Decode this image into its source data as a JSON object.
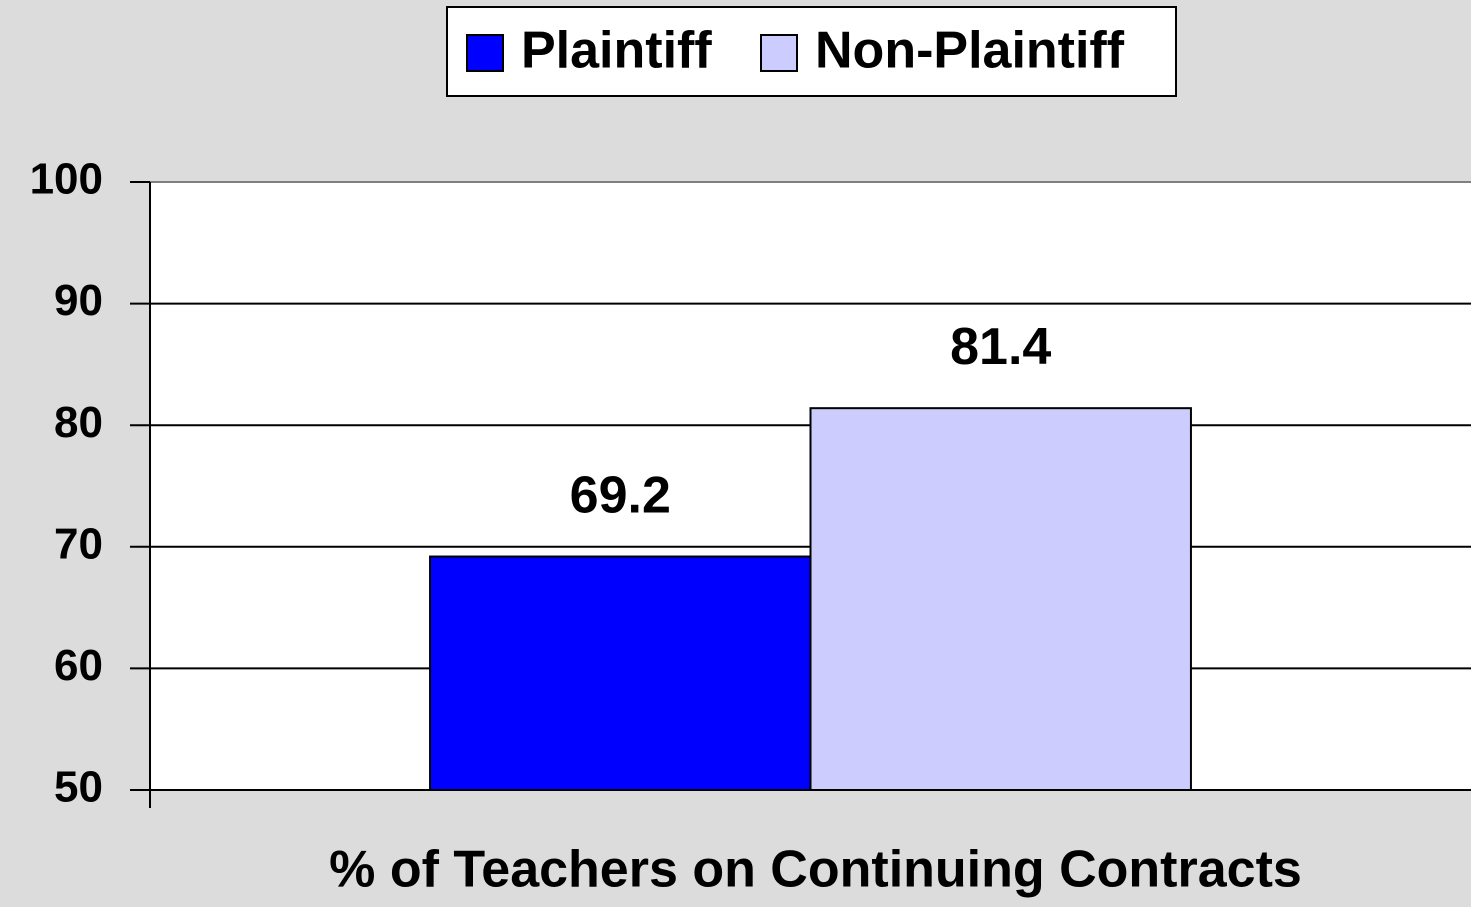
{
  "chart_data": {
    "type": "bar",
    "categories": [
      "% of Teachers on Continuing Contracts"
    ],
    "series": [
      {
        "name": "Plaintiff",
        "color": "#0000ff",
        "values": [
          69.2
        ]
      },
      {
        "name": "Non-Plaintiff",
        "color": "#ccccff",
        "values": [
          81.4
        ]
      }
    ],
    "ylim": [
      50,
      100
    ],
    "yticks": [
      50,
      60,
      70,
      80,
      90,
      100
    ],
    "grid": true,
    "legend": "top"
  }
}
